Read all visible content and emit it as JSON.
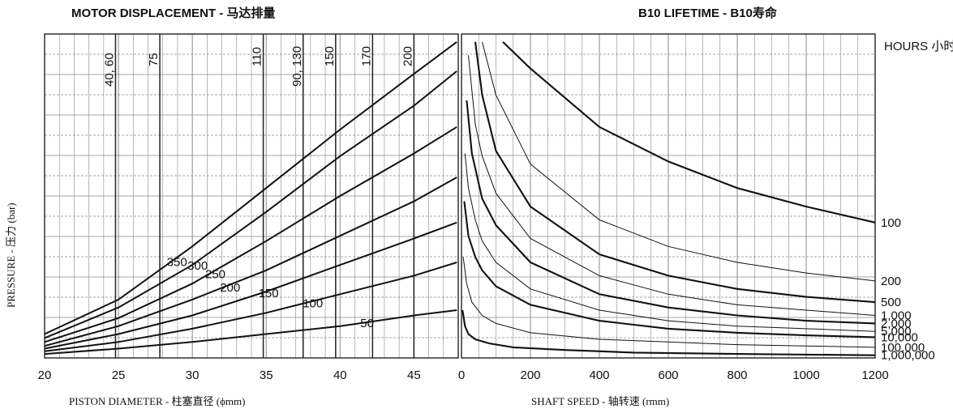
{
  "chart_data": [
    {
      "type": "line",
      "title": "MOTOR DISPLACEMENT - 马达排量",
      "xlabel": "PISTON DIAMETER - 柱塞直径 (ϕmm)",
      "ylabel": "PRESSURE - 压力 (bar)",
      "xlim": [
        20,
        48
      ],
      "x_ticks": [
        "20",
        "25",
        "30",
        "35",
        "40",
        "45"
      ],
      "grid": true,
      "displacement_lines": [
        {
          "name": "40, 60",
          "x": 24.8
        },
        {
          "name": "75",
          "x": 27.8
        },
        {
          "name": "110",
          "x": 34.8
        },
        {
          "name": "90, 130",
          "x": 37.5
        },
        {
          "name": "150",
          "x": 39.7
        },
        {
          "name": "170",
          "x": 42.2
        },
        {
          "name": "200",
          "x": 45.0
        }
      ],
      "series": [
        {
          "name": "350",
          "x": [
            20,
            25,
            30,
            35,
            40,
            45,
            47.9
          ],
          "y": [
            0.07,
            0.2,
            0.4,
            0.62,
            0.84,
            1.05,
            1.17
          ]
        },
        {
          "name": "300",
          "x": [
            20,
            25,
            30,
            35,
            40,
            45,
            47.9
          ],
          "y": [
            0.055,
            0.17,
            0.33,
            0.53,
            0.74,
            0.93,
            1.06
          ]
        },
        {
          "name": "250",
          "x": [
            20,
            25,
            30,
            35,
            40,
            45,
            47.9
          ],
          "y": [
            0.04,
            0.13,
            0.26,
            0.42,
            0.59,
            0.75,
            0.85
          ]
        },
        {
          "name": "200",
          "x": [
            20,
            25,
            30,
            35,
            40,
            45,
            47.9
          ],
          "y": [
            0.025,
            0.1,
            0.2,
            0.31,
            0.44,
            0.57,
            0.66
          ]
        },
        {
          "name": "150",
          "x": [
            20,
            25,
            30,
            35,
            40,
            45,
            47.9
          ],
          "y": [
            0.015,
            0.07,
            0.14,
            0.23,
            0.33,
            0.43,
            0.49
          ]
        },
        {
          "name": "100",
          "x": [
            20,
            25,
            30,
            35,
            40,
            45,
            47.9
          ],
          "y": [
            0.005,
            0.04,
            0.09,
            0.15,
            0.22,
            0.29,
            0.34
          ]
        },
        {
          "name": "50",
          "x": [
            20,
            25,
            30,
            35,
            40,
            45,
            47.9
          ],
          "y": [
            -0.005,
            0.015,
            0.04,
            0.07,
            0.1,
            0.14,
            0.16
          ]
        }
      ]
    },
    {
      "type": "line",
      "title": "B10 LIFETIME - B10寿命",
      "xlabel": "SHAFT SPEED - 轴转速 (rmm)",
      "y_right_label": "HOURS 小时",
      "xlim": [
        0,
        1200
      ],
      "x_ticks": [
        "0",
        "200",
        "400",
        "600",
        "800",
        "1000",
        "1200"
      ],
      "grid": true,
      "series": [
        {
          "name": "100",
          "x": [
            120,
            200,
            400,
            600,
            800,
            1000,
            1200
          ],
          "y": [
            1.17,
            1.07,
            0.85,
            0.72,
            0.62,
            0.55,
            0.49
          ]
        },
        {
          "name": "200",
          "x": [
            60,
            100,
            200,
            400,
            600,
            800,
            1000,
            1200
          ],
          "y": [
            1.17,
            0.97,
            0.71,
            0.5,
            0.4,
            0.34,
            0.3,
            0.27
          ]
        },
        {
          "name": "500",
          "x": [
            40,
            60,
            100,
            200,
            400,
            600,
            800,
            1000,
            1200
          ],
          "y": [
            1.17,
            0.97,
            0.76,
            0.55,
            0.37,
            0.29,
            0.24,
            0.21,
            0.19
          ]
        },
        {
          "name": "1,000",
          "x": [
            20,
            40,
            60,
            100,
            200,
            400,
            600,
            800,
            1000,
            1200
          ],
          "y": [
            1.12,
            0.86,
            0.74,
            0.6,
            0.43,
            0.29,
            0.22,
            0.18,
            0.16,
            0.14
          ]
        },
        {
          "name": "2,000",
          "x": [
            15,
            30,
            60,
            100,
            200,
            400,
            600,
            800,
            1000,
            1200
          ],
          "y": [
            0.95,
            0.75,
            0.58,
            0.48,
            0.34,
            0.22,
            0.17,
            0.14,
            0.12,
            0.11
          ]
        },
        {
          "name": "5,000",
          "x": [
            10,
            20,
            40,
            60,
            100,
            200,
            400,
            600,
            800,
            1000,
            1200
          ],
          "y": [
            0.75,
            0.62,
            0.5,
            0.42,
            0.34,
            0.24,
            0.16,
            0.12,
            0.1,
            0.09,
            0.08
          ]
        },
        {
          "name": "10,000",
          "x": [
            8,
            20,
            40,
            60,
            100,
            200,
            400,
            600,
            800,
            1000,
            1200
          ],
          "y": [
            0.57,
            0.44,
            0.36,
            0.31,
            0.25,
            0.18,
            0.12,
            0.09,
            0.075,
            0.065,
            0.058
          ]
        },
        {
          "name": "100,000",
          "x": [
            5,
            15,
            30,
            60,
            100,
            200,
            400,
            600,
            800,
            1000,
            1200
          ],
          "y": [
            0.36,
            0.26,
            0.19,
            0.14,
            0.11,
            0.075,
            0.05,
            0.04,
            0.03,
            0.025,
            0.02
          ]
        },
        {
          "name": "1,000,000",
          "x": [
            3,
            10,
            20,
            40,
            80,
            150,
            300,
            500,
            800,
            1200
          ],
          "y": [
            0.16,
            0.1,
            0.07,
            0.05,
            0.035,
            0.02,
            0.01,
            0.0,
            -0.005,
            -0.01
          ]
        }
      ]
    }
  ]
}
